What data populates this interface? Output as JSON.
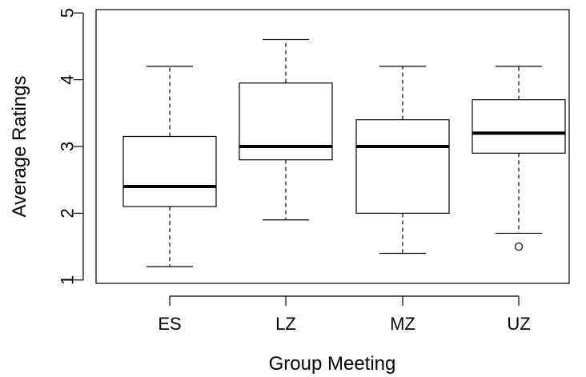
{
  "chart_data": {
    "type": "boxplot",
    "title": "",
    "xlabel": "Group Meeting",
    "ylabel": "Average Ratings",
    "ylim": [
      0.95,
      5.05
    ],
    "yticks": [
      1,
      2,
      3,
      4,
      5
    ],
    "grid": false,
    "categories": [
      "ES",
      "LZ",
      "MZ",
      "UZ"
    ],
    "boxes": [
      {
        "name": "ES",
        "whisker_low": 1.2,
        "q1": 2.1,
        "median": 2.4,
        "q3": 3.15,
        "whisker_high": 4.2,
        "outliers": []
      },
      {
        "name": "LZ",
        "whisker_low": 1.9,
        "q1": 2.8,
        "median": 3.0,
        "q3": 3.95,
        "whisker_high": 4.6,
        "outliers": []
      },
      {
        "name": "MZ",
        "whisker_low": 1.4,
        "q1": 2.0,
        "median": 3.0,
        "q3": 3.4,
        "whisker_high": 4.2,
        "outliers": []
      },
      {
        "name": "UZ",
        "whisker_low": 1.7,
        "q1": 2.9,
        "median": 3.2,
        "q3": 3.7,
        "whisker_high": 4.2,
        "outliers": [
          1.5
        ]
      }
    ]
  }
}
